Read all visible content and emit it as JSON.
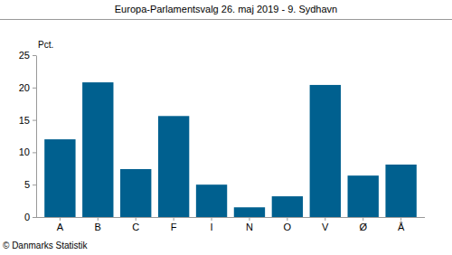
{
  "chart_data": {
    "type": "bar",
    "title": "Europa-Parlamentsvalg 26. maj 2019 - 9. Sydhavn",
    "y_label": "Pct.",
    "source": "© Danmarks Statistik",
    "categories": [
      "A",
      "B",
      "C",
      "F",
      "I",
      "N",
      "O",
      "V",
      "Ø",
      "Å"
    ],
    "values": [
      12.0,
      20.8,
      7.4,
      15.6,
      5.0,
      1.5,
      3.2,
      20.4,
      6.4,
      8.1
    ],
    "color": "#00608f",
    "ylim": [
      0,
      25
    ],
    "yticks": [
      0,
      5,
      10,
      15,
      20,
      25
    ],
    "grid": false
  }
}
